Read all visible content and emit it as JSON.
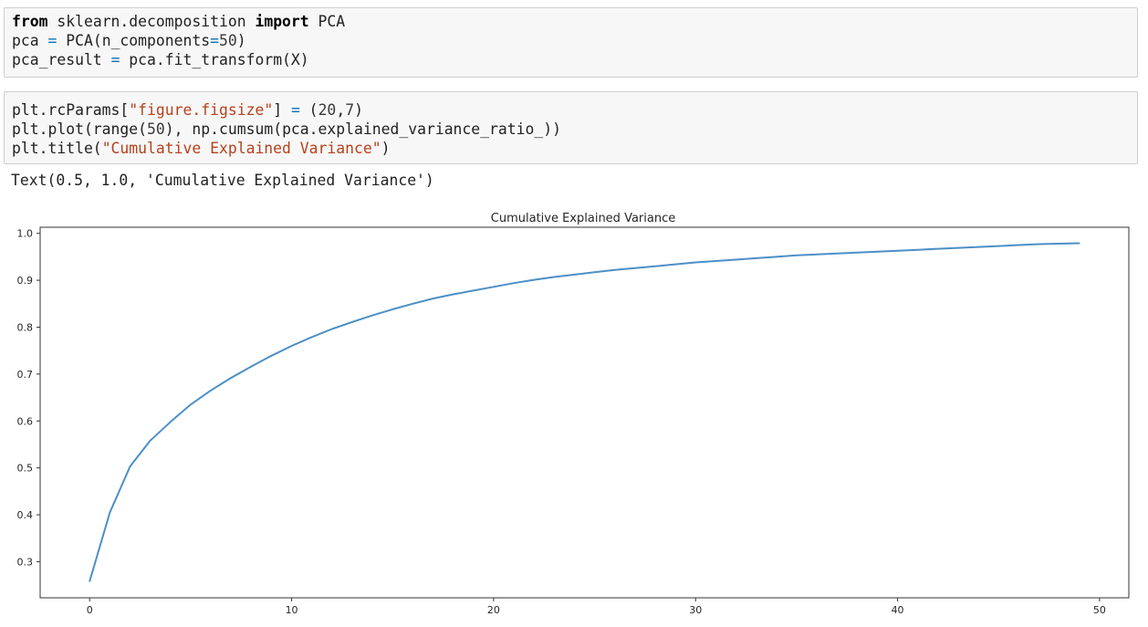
{
  "cells": [
    {
      "lines": [
        [
          {
            "t": "from",
            "c": "kw"
          },
          {
            "t": " sklearn.decomposition ",
            "c": ""
          },
          {
            "t": "import",
            "c": "kw"
          },
          {
            "t": " PCA",
            "c": ""
          }
        ],
        [
          {
            "t": "pca ",
            "c": ""
          },
          {
            "t": "=",
            "c": "op"
          },
          {
            "t": " PCA(n_components",
            "c": ""
          },
          {
            "t": "=",
            "c": "op"
          },
          {
            "t": "50",
            "c": "num"
          },
          {
            "t": ")",
            "c": ""
          }
        ],
        [
          {
            "t": "pca_result ",
            "c": ""
          },
          {
            "t": "=",
            "c": "op"
          },
          {
            "t": " pca.fit_transform(X)",
            "c": ""
          }
        ]
      ]
    },
    {
      "lines": [
        [
          {
            "t": "plt.rcParams[",
            "c": ""
          },
          {
            "t": "\"figure.figsize\"",
            "c": "str"
          },
          {
            "t": "] ",
            "c": ""
          },
          {
            "t": "=",
            "c": "op"
          },
          {
            "t": " (",
            "c": ""
          },
          {
            "t": "20",
            "c": "num"
          },
          {
            "t": ",",
            "c": ""
          },
          {
            "t": "7",
            "c": "num"
          },
          {
            "t": ")",
            "c": ""
          }
        ],
        [
          {
            "t": "plt.plot(range(",
            "c": ""
          },
          {
            "t": "50",
            "c": "num"
          },
          {
            "t": "), np.cumsum(pca.explained_variance_ratio_))",
            "c": ""
          }
        ],
        [
          {
            "t": "plt.title(",
            "c": ""
          },
          {
            "t": "\"Cumulative Explained Variance\"",
            "c": "str"
          },
          {
            "t": ")",
            "c": ""
          }
        ]
      ]
    }
  ],
  "output_text": "Text(0.5, 1.0, 'Cumulative Explained Variance')",
  "chart_data": {
    "type": "line",
    "title": "Cumulative Explained Variance",
    "xlabel": "",
    "ylabel": "",
    "xlim": [
      -2.45,
      51.45
    ],
    "ylim": [
      0.223,
      1.013
    ],
    "xticks": [
      0,
      10,
      20,
      30,
      40,
      50
    ],
    "yticks": [
      0.3,
      0.4,
      0.5,
      0.6,
      0.7,
      0.8,
      0.9,
      1.0
    ],
    "ytick_labels": [
      "0.3",
      "0.4",
      "0.5",
      "0.6",
      "0.7",
      "0.8",
      "0.9",
      "1.0"
    ],
    "grid": false,
    "line_color": "#4c8fc6",
    "series": [
      {
        "x": [
          0,
          1,
          2,
          3,
          4,
          5,
          6,
          7,
          8,
          9,
          10,
          11,
          12,
          13,
          14,
          15,
          16,
          17,
          18,
          19,
          20,
          21,
          22,
          23,
          24,
          25,
          26,
          27,
          28,
          29,
          30,
          31,
          32,
          33,
          34,
          35,
          36,
          37,
          38,
          39,
          40,
          41,
          42,
          43,
          44,
          45,
          46,
          47,
          48,
          49
        ],
        "values": [
          0.258,
          0.405,
          0.503,
          0.558,
          0.598,
          0.635,
          0.665,
          0.692,
          0.716,
          0.739,
          0.76,
          0.779,
          0.796,
          0.811,
          0.825,
          0.838,
          0.85,
          0.861,
          0.87,
          0.878,
          0.886,
          0.894,
          0.901,
          0.907,
          0.912,
          0.917,
          0.922,
          0.926,
          0.93,
          0.934,
          0.938,
          0.941,
          0.944,
          0.947,
          0.95,
          0.953,
          0.955,
          0.957,
          0.959,
          0.961,
          0.963,
          0.965,
          0.967,
          0.969,
          0.971,
          0.973,
          0.975,
          0.977,
          0.978,
          0.979
        ]
      }
    ]
  }
}
